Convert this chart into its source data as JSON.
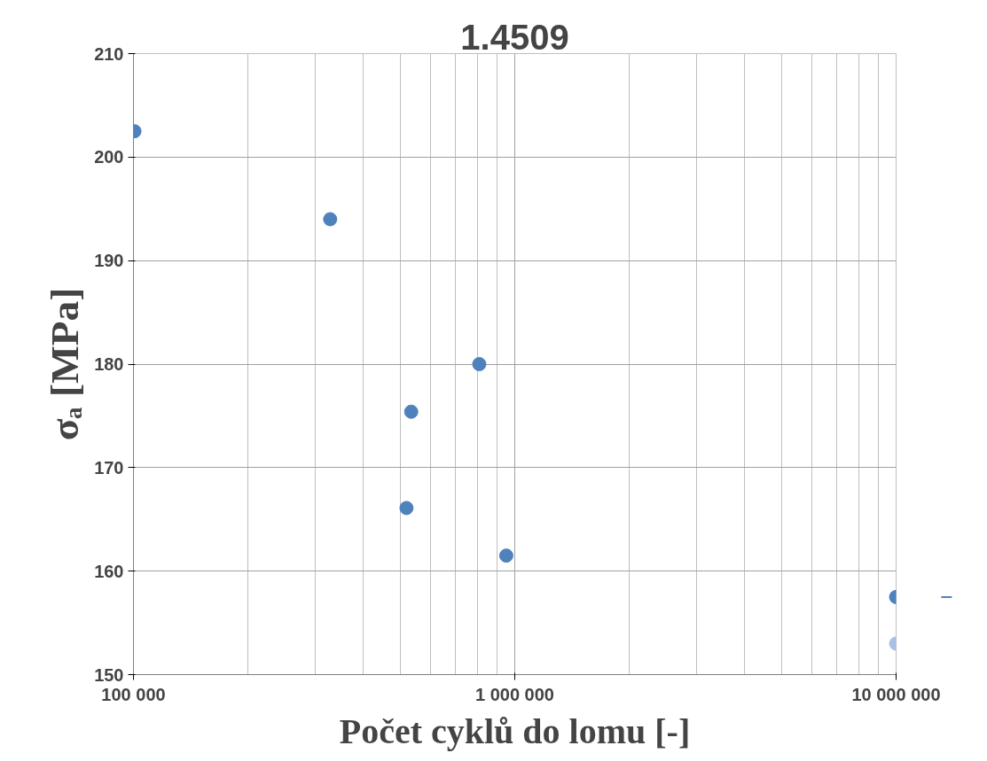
{
  "chart_data": {
    "type": "scatter",
    "title": "1.4509",
    "xlabel": "Počet cyklů do lomu [-]",
    "ylabel": "σₐ [MPa]",
    "series": [
      {
        "color": "#4f81bd",
        "x": [
          100600,
          328000,
          807000,
          535000,
          520000,
          950000
        ],
        "values": [
          202.5,
          194.0,
          180.0,
          175.4,
          166.1,
          161.5
        ]
      },
      {
        "color": "#4f81bd",
        "x": [
          10000000
        ],
        "values": [
          157.5
        ]
      },
      {
        "color": "#a9c1e3",
        "x": [
          10000000
        ],
        "values": [
          153.0
        ]
      }
    ],
    "log": "x",
    "xlim": [
      100000,
      10000000
    ],
    "ylim": [
      150,
      210
    ],
    "xticks": [
      {
        "value": 100000,
        "label": "100 000"
      },
      {
        "value": 1000000,
        "label": "1 000 000"
      },
      {
        "value": 10000000,
        "label": "10 000 000"
      }
    ],
    "yticks": [
      150,
      160,
      170,
      180,
      190,
      200,
      210
    ],
    "grid": true,
    "marker": "circle"
  }
}
